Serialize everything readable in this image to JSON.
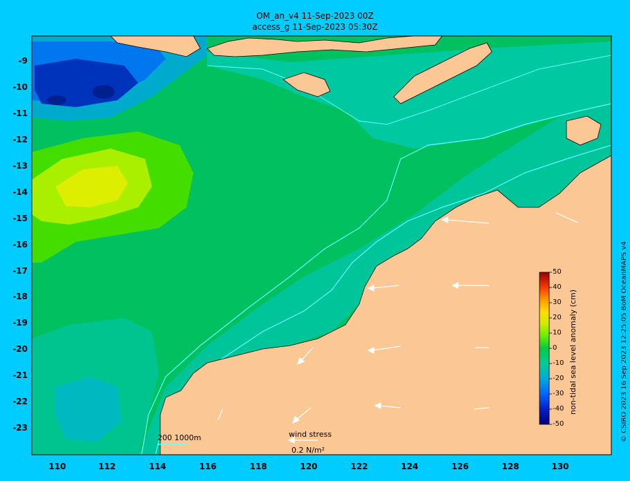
{
  "title_line1": "OM_an_v4  11-Sep-2023 00Z",
  "title_line2": "access_g 11-Sep-2023 05:30Z",
  "credit": "© CSIRO 2023   16 Sep 2023 12:25:05 BoM OceanMAPS v4",
  "latitude_labels": [
    "-9",
    "-10",
    "-11",
    "-12",
    "-13",
    "-14",
    "-15",
    "-16",
    "-17",
    "-18",
    "-19",
    "-20",
    "-21",
    "-22",
    "-23"
  ],
  "longitude_labels": [
    "110",
    "112",
    "114",
    "116",
    "118",
    "120",
    "122",
    "124",
    "126",
    "128",
    "130"
  ],
  "colorbar": {
    "label": "non-tidal sea level anomaly (cm)",
    "ticks": [
      "50",
      "40",
      "30",
      "20",
      "10",
      "0",
      "-10",
      "-20",
      "-30",
      "-40",
      "-50"
    ],
    "range": [
      -50,
      50
    ]
  },
  "bathymetry_legend": "200  1000m",
  "wind_stress_label": "wind stress",
  "wind_stress_scale": "0.2 N/m²",
  "colors": {
    "frame_background": "#00ccff",
    "land": "#fbc895",
    "contour": "#66ffff",
    "wind_vector": "#ffffff"
  }
}
